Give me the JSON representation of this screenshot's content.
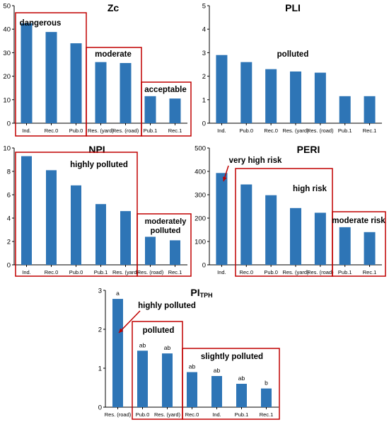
{
  "colors": {
    "bar": "#2e75b6",
    "box": "#c00000",
    "axis": "#000000",
    "text": "#000000"
  },
  "chart_data": [
    {
      "id": "zc",
      "type": "bar",
      "title": "Zc",
      "categories": [
        "Ind.",
        "Rec.0",
        "Pub.0",
        "Res. (yard)",
        "Res. (road)",
        "Pub.1",
        "Rec.1"
      ],
      "values": [
        42.5,
        38.8,
        34.0,
        26.0,
        25.6,
        11.5,
        10.5
      ],
      "ylim": [
        0,
        50
      ],
      "yticks": [
        0,
        10,
        20,
        30,
        40,
        50
      ],
      "groups": [
        {
          "label": "dangerous",
          "from": 0,
          "to": 2
        },
        {
          "label": "moderate",
          "from": 3,
          "to": 4
        },
        {
          "label": "acceptable",
          "from": 5,
          "to": 6
        }
      ],
      "labels": [],
      "annotations": []
    },
    {
      "id": "pli",
      "type": "bar",
      "title": "PLI",
      "categories": [
        "Ind.",
        "Pub.0",
        "Rec.0",
        "Res. (yard)",
        "Res. (road)",
        "Pub.1",
        "Rec.1"
      ],
      "values": [
        2.9,
        2.6,
        2.3,
        2.2,
        2.15,
        1.15,
        1.15
      ],
      "ylim": [
        0,
        5
      ],
      "yticks": [
        0,
        1,
        2,
        3,
        4,
        5
      ],
      "groups": [],
      "labels": [],
      "annotations": [
        {
          "text": "polluted"
        }
      ]
    },
    {
      "id": "npi",
      "type": "bar",
      "title": "NPI",
      "categories": [
        "Ind.",
        "Rec.0",
        "Pub.0",
        "Pub.1",
        "Res. (yard)",
        "Res. (road)",
        "Rec.1"
      ],
      "values": [
        9.3,
        8.1,
        6.8,
        5.2,
        4.6,
        2.4,
        2.1
      ],
      "ylim": [
        0,
        10
      ],
      "yticks": [
        0,
        2,
        4,
        6,
        8,
        10
      ],
      "groups": [
        {
          "label": "highly polluted",
          "from": 0,
          "to": 4
        },
        {
          "label": "moderately polluted",
          "from": 5,
          "to": 6
        }
      ],
      "labels": [],
      "annotations": []
    },
    {
      "id": "peri",
      "type": "bar",
      "title": "PERI",
      "categories": [
        "Ind.",
        "Rec.0",
        "Pub.0",
        "Res. (yard)",
        "Res. (road)",
        "Pub.1",
        "Rec.1"
      ],
      "values": [
        393,
        344,
        298,
        243,
        223,
        161,
        140
      ],
      "ylim": [
        0,
        500
      ],
      "yticks": [
        0,
        100,
        200,
        300,
        400,
        500
      ],
      "groups": [
        {
          "label": "high risk",
          "from": 1,
          "to": 4
        },
        {
          "label": "moderate risk",
          "from": 5,
          "to": 6
        }
      ],
      "labels": [],
      "annotations": [
        {
          "text": "very high risk",
          "target": 0
        }
      ]
    },
    {
      "id": "pitph",
      "type": "bar",
      "title": "PI",
      "title_sub": "TPH",
      "categories": [
        "Res. (road)",
        "Pub.0",
        "Res. (yard)",
        "Rec.0",
        "Ind.",
        "Pub.1",
        "Rec.1"
      ],
      "values": [
        2.78,
        1.45,
        1.38,
        0.9,
        0.8,
        0.6,
        0.48
      ],
      "ylim": [
        0,
        3
      ],
      "yticks": [
        0,
        1,
        2,
        3
      ],
      "groups": [
        {
          "label": "polluted",
          "from": 1,
          "to": 2
        },
        {
          "label": "slightly polluted",
          "from": 3,
          "to": 6
        }
      ],
      "labels": [
        "a",
        "ab",
        "ab",
        "ab",
        "ab",
        "ab",
        "b"
      ],
      "annotations": [
        {
          "text": "highly polluted",
          "target": 0
        }
      ]
    }
  ]
}
